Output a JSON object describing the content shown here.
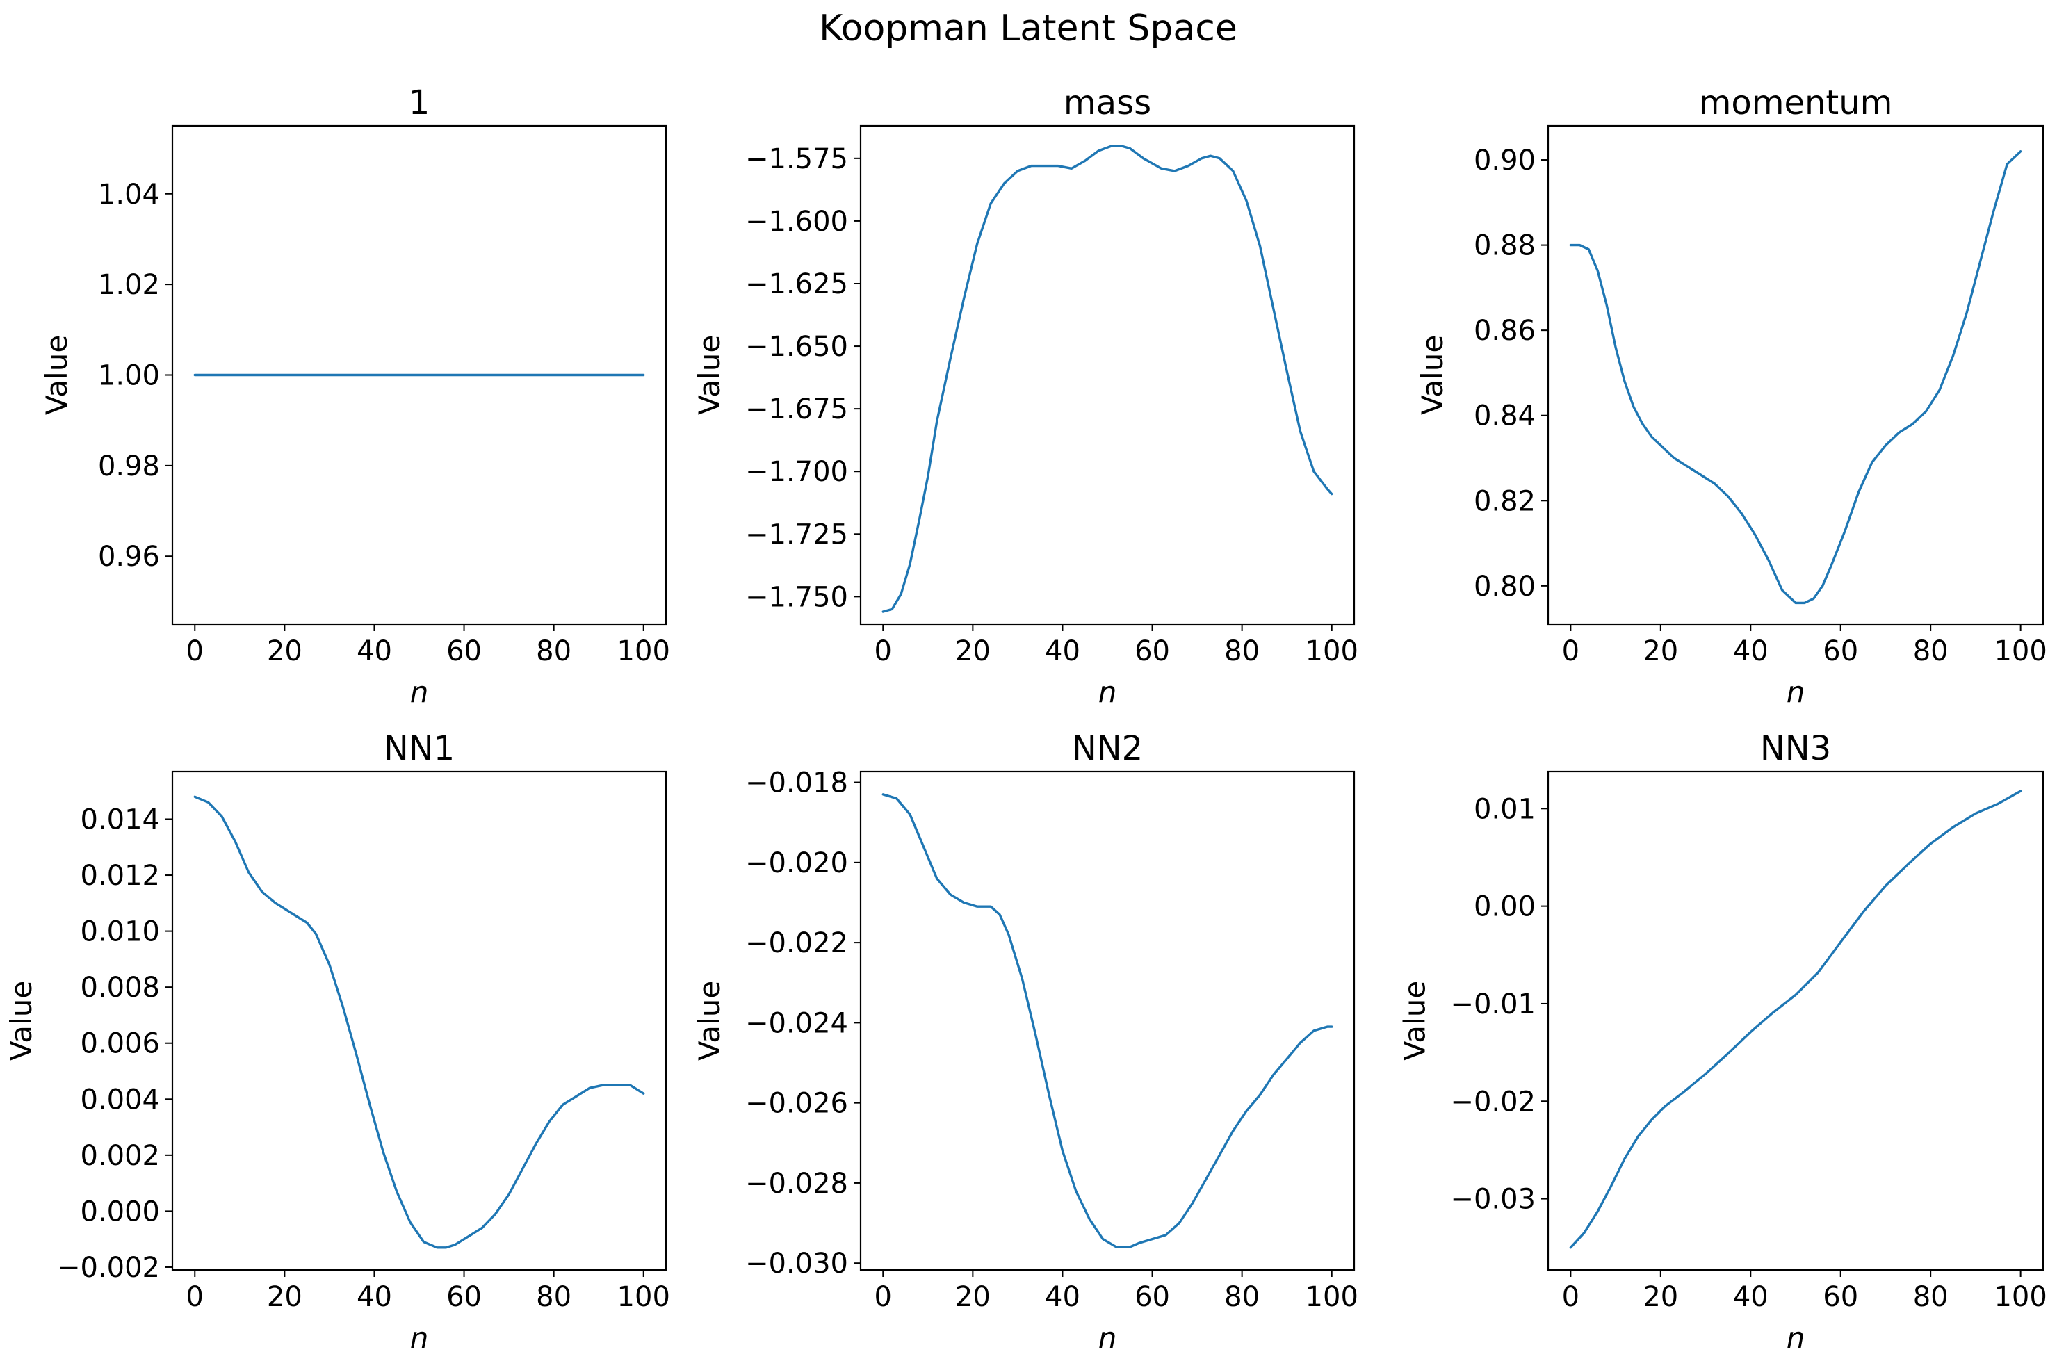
{
  "title": "Koopman Latent Space",
  "colors": {
    "series": "#1f77b4"
  },
  "chart_data": [
    {
      "type": "line",
      "title": "1",
      "xlabel": "n",
      "ylabel": "Value",
      "xlim": [
        -5,
        105
      ],
      "ylim": [
        0.945,
        1.055
      ],
      "xticks": [
        0,
        20,
        40,
        60,
        80,
        100
      ],
      "xtick_labels": [
        "0",
        "20",
        "40",
        "60",
        "80",
        "100"
      ],
      "yticks": [
        0.96,
        0.98,
        1.0,
        1.02,
        1.04
      ],
      "ytick_labels": [
        "0.96",
        "0.98",
        "1.00",
        "1.02",
        "1.04"
      ],
      "grid": false,
      "x": [
        0,
        100
      ],
      "y": [
        1.0,
        1.0
      ]
    },
    {
      "type": "line",
      "title": "mass",
      "xlabel": "n",
      "ylabel": "Value",
      "xlim": [
        -5,
        105
      ],
      "ylim": [
        -1.761,
        -1.562
      ],
      "xticks": [
        0,
        20,
        40,
        60,
        80,
        100
      ],
      "xtick_labels": [
        "0",
        "20",
        "40",
        "60",
        "80",
        "100"
      ],
      "yticks": [
        -1.75,
        -1.725,
        -1.7,
        -1.675,
        -1.65,
        -1.625,
        -1.6,
        -1.575
      ],
      "ytick_labels": [
        "−1.750",
        "−1.725",
        "−1.700",
        "−1.675",
        "−1.650",
        "−1.625",
        "−1.600",
        "−1.575"
      ],
      "grid": false,
      "x": [
        0,
        2,
        4,
        6,
        8,
        10,
        12,
        15,
        18,
        21,
        24,
        27,
        30,
        33,
        36,
        39,
        42,
        45,
        48,
        51,
        53,
        55,
        58,
        62,
        65,
        68,
        71,
        73,
        75,
        78,
        81,
        84,
        87,
        90,
        93,
        96,
        99,
        100
      ],
      "y": [
        -1.756,
        -1.755,
        -1.749,
        -1.737,
        -1.72,
        -1.702,
        -1.68,
        -1.655,
        -1.631,
        -1.609,
        -1.593,
        -1.585,
        -1.58,
        -1.578,
        -1.578,
        -1.578,
        -1.579,
        -1.576,
        -1.572,
        -1.57,
        -1.57,
        -1.571,
        -1.575,
        -1.579,
        -1.58,
        -1.578,
        -1.575,
        -1.574,
        -1.575,
        -1.58,
        -1.592,
        -1.61,
        -1.635,
        -1.66,
        -1.684,
        -1.7,
        -1.707,
        -1.709
      ]
    },
    {
      "type": "line",
      "title": "momentum",
      "xlabel": "n",
      "ylabel": "Value",
      "xlim": [
        -5,
        105
      ],
      "ylim": [
        0.791,
        0.908
      ],
      "xticks": [
        0,
        20,
        40,
        60,
        80,
        100
      ],
      "xtick_labels": [
        "0",
        "20",
        "40",
        "60",
        "80",
        "100"
      ],
      "yticks": [
        0.8,
        0.82,
        0.84,
        0.86,
        0.88,
        0.9
      ],
      "ytick_labels": [
        "0.80",
        "0.82",
        "0.84",
        "0.86",
        "0.88",
        "0.90"
      ],
      "grid": false,
      "x": [
        0,
        2,
        4,
        6,
        8,
        10,
        12,
        14,
        16,
        18,
        20,
        23,
        26,
        29,
        32,
        35,
        38,
        41,
        44,
        47,
        50,
        52,
        54,
        56,
        58,
        61,
        64,
        67,
        70,
        73,
        76,
        79,
        82,
        85,
        88,
        91,
        94,
        97,
        100
      ],
      "y": [
        0.88,
        0.88,
        0.879,
        0.874,
        0.866,
        0.856,
        0.848,
        0.842,
        0.838,
        0.835,
        0.833,
        0.83,
        0.828,
        0.826,
        0.824,
        0.821,
        0.817,
        0.812,
        0.806,
        0.799,
        0.796,
        0.796,
        0.797,
        0.8,
        0.805,
        0.813,
        0.822,
        0.829,
        0.833,
        0.836,
        0.838,
        0.841,
        0.846,
        0.854,
        0.864,
        0.876,
        0.888,
        0.899,
        0.902
      ]
    },
    {
      "type": "line",
      "title": "NN1",
      "xlabel": "n",
      "ylabel": "Value",
      "xlim": [
        -5,
        105
      ],
      "ylim": [
        -0.0021,
        0.0157
      ],
      "xticks": [
        0,
        20,
        40,
        60,
        80,
        100
      ],
      "xtick_labels": [
        "0",
        "20",
        "40",
        "60",
        "80",
        "100"
      ],
      "yticks": [
        -0.002,
        0.0,
        0.002,
        0.004,
        0.006,
        0.008,
        0.01,
        0.012,
        0.014
      ],
      "ytick_labels": [
        "−0.002",
        "0.000",
        "0.002",
        "0.004",
        "0.006",
        "0.008",
        "0.010",
        "0.012",
        "0.014"
      ],
      "grid": false,
      "x": [
        0,
        3,
        6,
        9,
        12,
        15,
        18,
        21,
        23,
        25,
        27,
        30,
        33,
        36,
        39,
        42,
        45,
        48,
        51,
        54,
        56,
        58,
        61,
        64,
        67,
        70,
        73,
        76,
        79,
        82,
        85,
        88,
        91,
        94,
        97,
        100
      ],
      "y": [
        0.0148,
        0.0146,
        0.0141,
        0.0132,
        0.0121,
        0.0114,
        0.011,
        0.0107,
        0.0105,
        0.0103,
        0.0099,
        0.0088,
        0.0073,
        0.0056,
        0.0038,
        0.0021,
        0.0007,
        -0.0004,
        -0.0011,
        -0.0013,
        -0.0013,
        -0.0012,
        -0.0009,
        -0.0006,
        -0.0001,
        0.0006,
        0.0015,
        0.0024,
        0.0032,
        0.0038,
        0.0041,
        0.0044,
        0.0045,
        0.0045,
        0.0045,
        0.0042
      ]
    },
    {
      "type": "line",
      "title": "NN2",
      "xlabel": "n",
      "ylabel": "Value",
      "xlim": [
        -5,
        105
      ],
      "ylim": [
        -0.03017,
        -0.01773
      ],
      "xticks": [
        0,
        20,
        40,
        60,
        80,
        100
      ],
      "xtick_labels": [
        "0",
        "20",
        "40",
        "60",
        "80",
        "100"
      ],
      "yticks": [
        -0.03,
        -0.028,
        -0.026,
        -0.024,
        -0.022,
        -0.02,
        -0.018
      ],
      "ytick_labels": [
        "−0.030",
        "−0.028",
        "−0.026",
        "−0.024",
        "−0.022",
        "−0.020",
        "−0.018"
      ],
      "grid": false,
      "x": [
        0,
        3,
        6,
        9,
        12,
        15,
        18,
        21,
        24,
        26,
        28,
        31,
        34,
        37,
        40,
        43,
        46,
        49,
        52,
        55,
        57,
        60,
        63,
        66,
        69,
        72,
        75,
        78,
        81,
        84,
        87,
        90,
        93,
        96,
        99,
        100
      ],
      "y": [
        -0.0183,
        -0.0184,
        -0.0188,
        -0.0196,
        -0.0204,
        -0.0208,
        -0.021,
        -0.0211,
        -0.0211,
        -0.0213,
        -0.0218,
        -0.0229,
        -0.0243,
        -0.0258,
        -0.0272,
        -0.0282,
        -0.0289,
        -0.0294,
        -0.0296,
        -0.0296,
        -0.0295,
        -0.0294,
        -0.0293,
        -0.029,
        -0.0285,
        -0.0279,
        -0.0273,
        -0.0267,
        -0.0262,
        -0.0258,
        -0.0253,
        -0.0249,
        -0.0245,
        -0.0242,
        -0.0241,
        -0.0241
      ]
    },
    {
      "type": "line",
      "title": "NN3",
      "xlabel": "n",
      "ylabel": "Value",
      "xlim": [
        -5,
        105
      ],
      "ylim": [
        -0.0373,
        0.0138
      ],
      "xticks": [
        0,
        20,
        40,
        60,
        80,
        100
      ],
      "xtick_labels": [
        "0",
        "20",
        "40",
        "60",
        "80",
        "100"
      ],
      "yticks": [
        -0.03,
        -0.02,
        -0.01,
        0.0,
        0.01
      ],
      "ytick_labels": [
        "−0.03",
        "−0.02",
        "−0.01",
        "0.00",
        "0.01"
      ],
      "grid": false,
      "x": [
        0,
        3,
        6,
        9,
        12,
        15,
        18,
        21,
        25,
        30,
        35,
        40,
        45,
        50,
        55,
        60,
        65,
        70,
        75,
        80,
        85,
        90,
        95,
        100
      ],
      "y": [
        -0.035,
        -0.0335,
        -0.0313,
        -0.0287,
        -0.0259,
        -0.0236,
        -0.0219,
        -0.0205,
        -0.0191,
        -0.0172,
        -0.0151,
        -0.0129,
        -0.0109,
        -0.0091,
        -0.0068,
        -0.0037,
        -0.0006,
        0.0021,
        0.0043,
        0.0064,
        0.0081,
        0.0095,
        0.0105,
        0.0118
      ]
    }
  ]
}
